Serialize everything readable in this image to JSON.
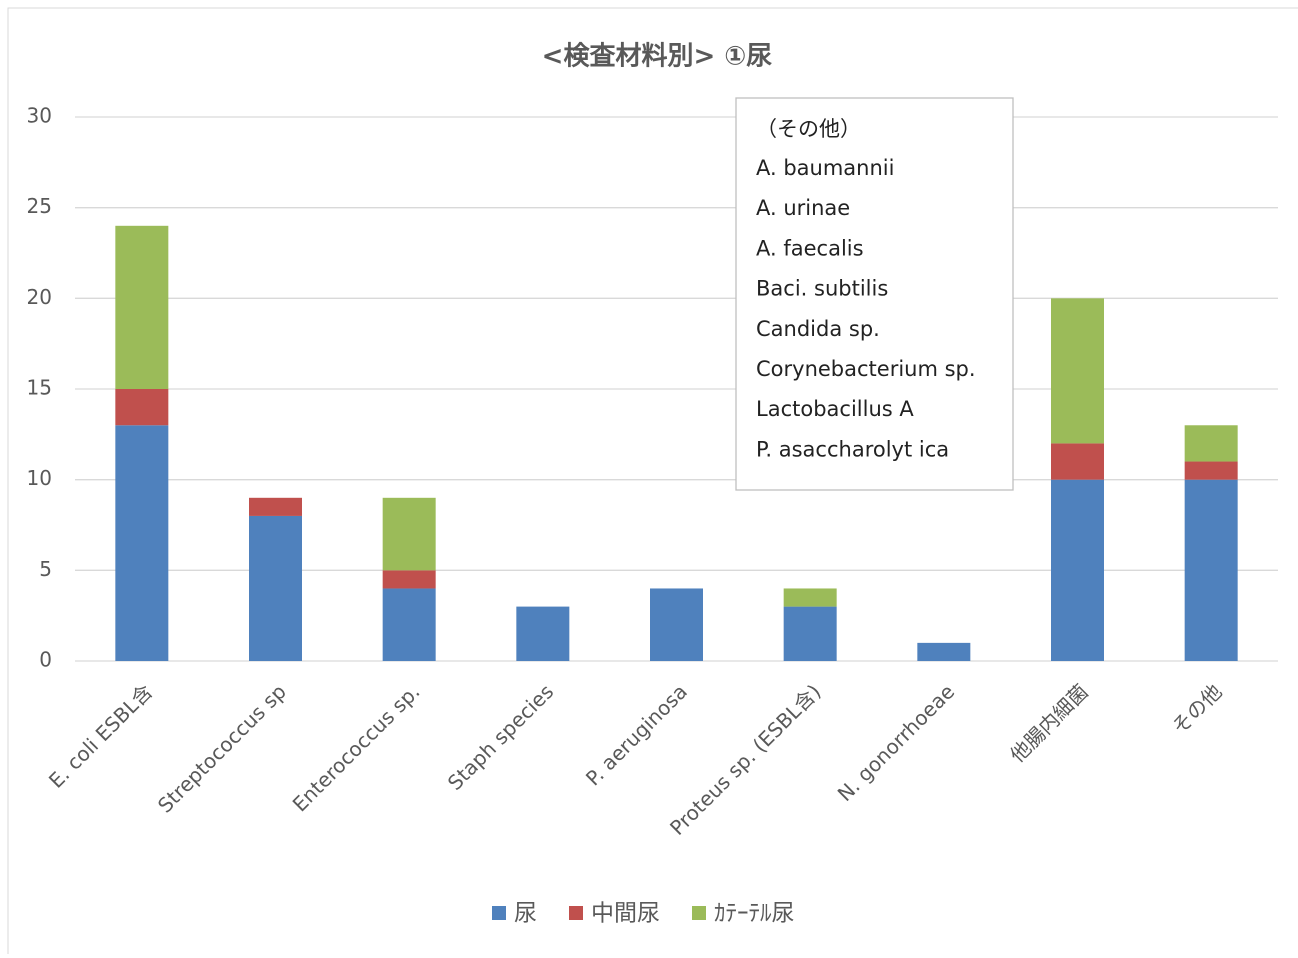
{
  "chart_data": {
    "type": "stacked_bar",
    "title": "<検査材料別> ①尿",
    "categories": [
      "E. coli ESBL含",
      "Streptococcus sp",
      "Enterococcus sp.",
      "Staph species",
      "P. aeruginosa",
      "Proteus sp. (ESBL含)",
      "N. gonorrhoeae",
      "他腸内細菌",
      "その他"
    ],
    "series": [
      {
        "name": "尿",
        "color": "#4f81bd",
        "values": [
          13,
          8,
          4,
          3,
          4,
          3,
          1,
          10,
          10
        ]
      },
      {
        "name": "中間尿",
        "color": "#c0504d",
        "values": [
          2,
          1,
          1,
          0,
          0,
          0,
          0,
          2,
          1
        ]
      },
      {
        "name": "ｶﾃｰﾃﾙ尿",
        "color": "#9bbb59",
        "values": [
          9,
          0,
          4,
          0,
          0,
          1,
          0,
          8,
          2
        ]
      }
    ],
    "ylim": [
      0,
      30
    ],
    "yticks": [
      0,
      5,
      10,
      15,
      20,
      25,
      30
    ],
    "grid": true,
    "legend": "bottom",
    "annotation": {
      "title": "（その他）",
      "lines": [
        "A. baumannii",
        "A. urinae",
        "A. faecalis",
        "Baci. subtilis",
        "Candida sp.",
        "Corynebacterium sp.",
        "Lactobacillus A",
        "P. asaccharolyt ica"
      ]
    }
  }
}
